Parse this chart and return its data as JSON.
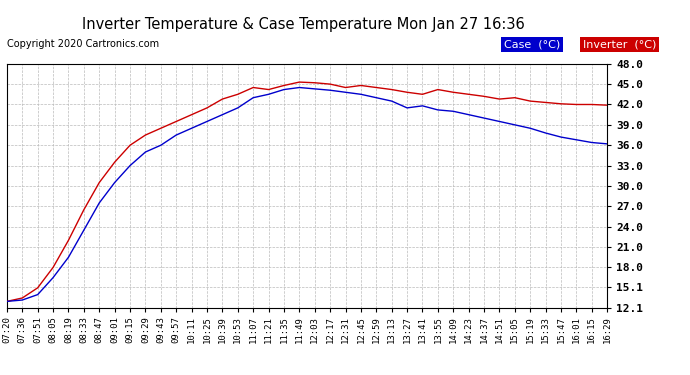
{
  "title": "Inverter Temperature & Case Temperature Mon Jan 27 16:36",
  "copyright": "Copyright 2020 Cartronics.com",
  "legend_case_label": "Case  (°C)",
  "legend_inverter_label": "Inverter  (°C)",
  "case_color": "#0000cc",
  "inverter_color": "#cc0000",
  "legend_case_bg": "#0000cc",
  "legend_inverter_bg": "#cc0000",
  "background_color": "#ffffff",
  "plot_bg_color": "#ffffff",
  "grid_color": "#bbbbbb",
  "ylim_min": 12.1,
  "ylim_max": 48.0,
  "yticks": [
    12.1,
    15.1,
    18.0,
    21.0,
    24.0,
    27.0,
    30.0,
    33.0,
    36.0,
    39.0,
    42.0,
    45.0,
    48.0
  ],
  "x_labels": [
    "07:20",
    "07:36",
    "07:51",
    "08:05",
    "08:19",
    "08:33",
    "08:47",
    "09:01",
    "09:15",
    "09:29",
    "09:43",
    "09:57",
    "10:11",
    "10:25",
    "10:39",
    "10:53",
    "11:07",
    "11:21",
    "11:35",
    "11:49",
    "12:03",
    "12:17",
    "12:31",
    "12:45",
    "12:59",
    "13:13",
    "13:27",
    "13:41",
    "13:55",
    "14:09",
    "14:23",
    "14:37",
    "14:51",
    "15:05",
    "15:19",
    "15:33",
    "15:47",
    "16:01",
    "16:15",
    "16:29"
  ],
  "case_temps": [
    13.0,
    13.5,
    15.0,
    18.0,
    22.0,
    26.5,
    30.5,
    33.5,
    36.0,
    37.5,
    38.5,
    39.5,
    40.5,
    41.5,
    42.8,
    43.5,
    44.5,
    44.2,
    44.8,
    45.3,
    45.2,
    45.0,
    44.5,
    44.8,
    44.5,
    44.2,
    43.8,
    43.5,
    44.2,
    43.8,
    43.5,
    43.2,
    42.8,
    43.0,
    42.5,
    42.3,
    42.1,
    42.0,
    42.0,
    41.9
  ],
  "inverter_temps": [
    13.0,
    13.2,
    14.0,
    16.5,
    19.5,
    23.5,
    27.5,
    30.5,
    33.0,
    35.0,
    36.0,
    37.5,
    38.5,
    39.5,
    40.5,
    41.5,
    43.0,
    43.5,
    44.2,
    44.5,
    44.3,
    44.1,
    43.8,
    43.5,
    43.0,
    42.5,
    41.5,
    41.8,
    41.2,
    41.0,
    40.5,
    40.0,
    39.5,
    39.0,
    38.5,
    37.8,
    37.2,
    36.8,
    36.4,
    36.2
  ]
}
